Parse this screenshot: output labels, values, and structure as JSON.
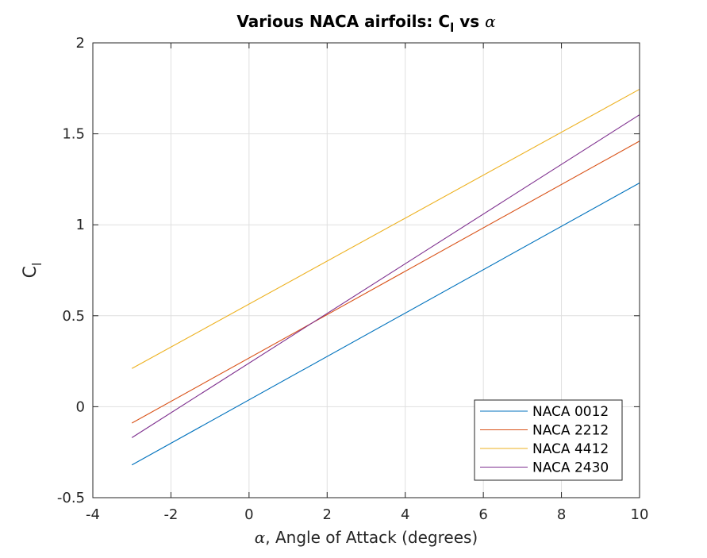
{
  "chart_data": {
    "type": "line",
    "title": "Various NACA airfoils: C",
    "title_subscript": "l",
    "title_suffix": " vs ",
    "title_greek": "α",
    "xlabel_greek": "α",
    "xlabel": ", Angle of Attack (degrees)",
    "ylabel": "C",
    "ylabel_subscript": "l",
    "xlim": [
      -4,
      10
    ],
    "ylim": [
      -0.5,
      2
    ],
    "xticks": [
      -4,
      -2,
      0,
      2,
      4,
      6,
      8,
      10
    ],
    "yticks": [
      -0.5,
      0,
      0.5,
      1,
      1.5,
      2
    ],
    "xtick_labels": [
      "-4",
      "-2",
      "0",
      "2",
      "4",
      "6",
      "8",
      "10"
    ],
    "ytick_labels": [
      "-0.5",
      "0",
      "0.5",
      "1",
      "1.5",
      "2"
    ],
    "grid": true,
    "legend_position": "bottom-right",
    "series": [
      {
        "name": "NACA 0012",
        "color": "#0072BD",
        "x": [
          -3,
          10
        ],
        "y": [
          -0.32,
          1.23
        ]
      },
      {
        "name": "NACA 2212",
        "color": "#D95319",
        "x": [
          -3,
          10
        ],
        "y": [
          -0.09,
          1.46
        ]
      },
      {
        "name": "NACA 4412",
        "color": "#EDB120",
        "x": [
          -3,
          10
        ],
        "y": [
          0.21,
          1.745
        ]
      },
      {
        "name": "NACA 2430",
        "color": "#7E2F8E",
        "x": [
          -3,
          10
        ],
        "y": [
          -0.17,
          1.605
        ]
      }
    ]
  }
}
